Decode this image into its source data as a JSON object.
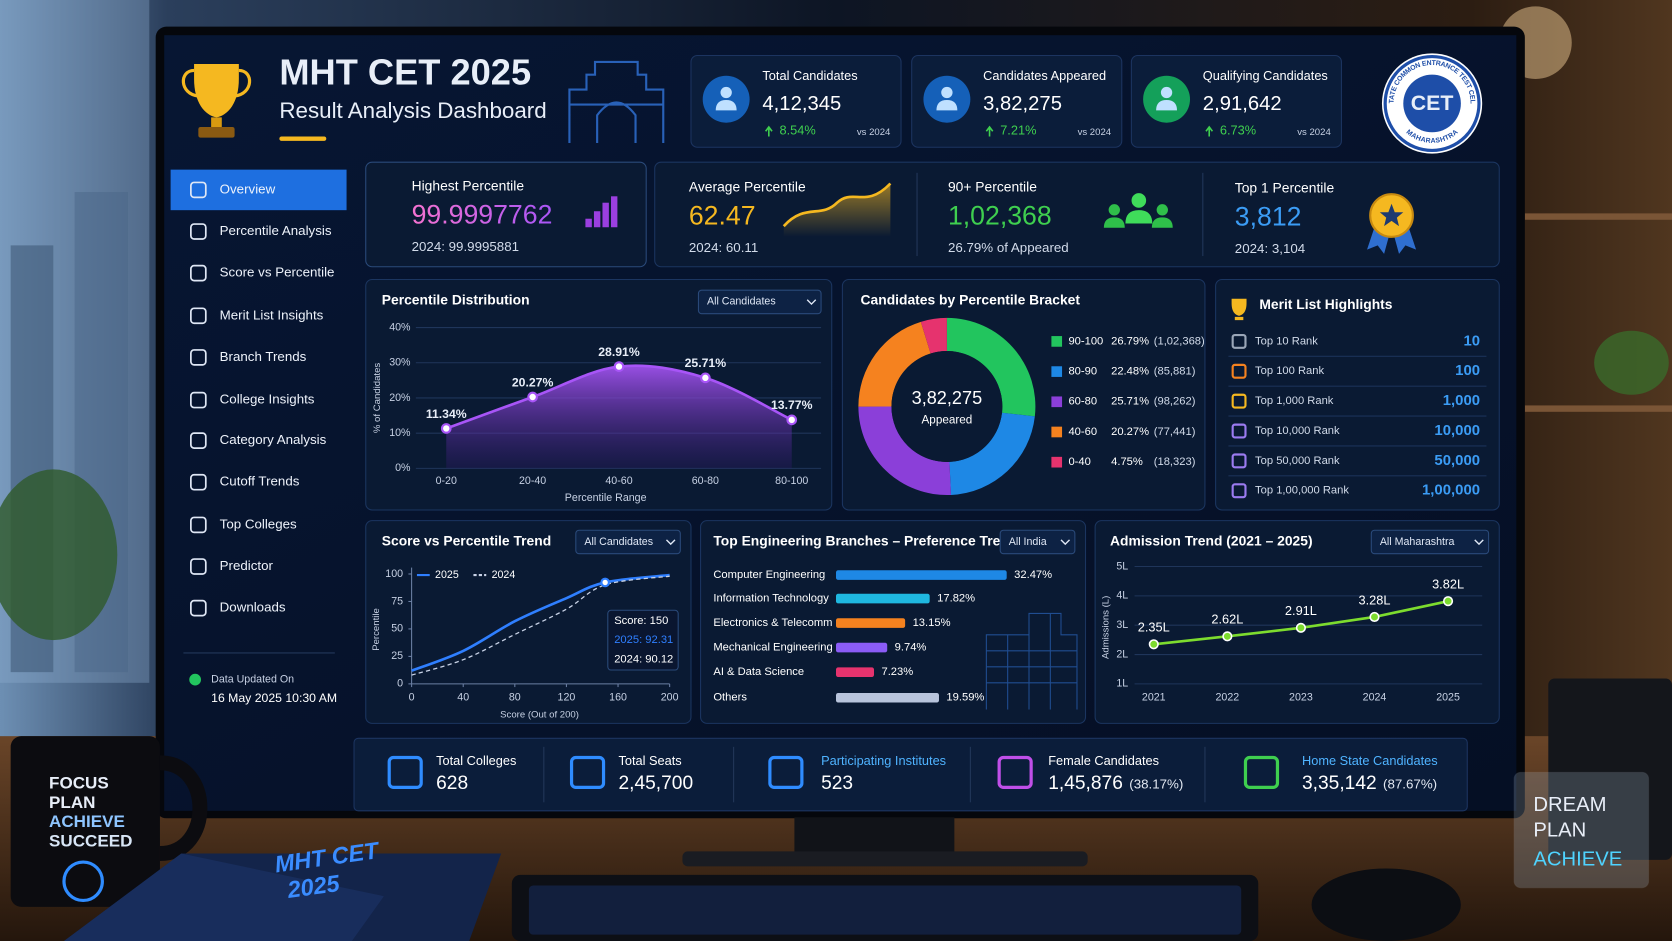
{
  "scene": {
    "mug": [
      "FOCUS",
      "PLAN",
      "ACHIEVE",
      "SUCCEED"
    ],
    "notebook": [
      "MHT CET",
      "2025"
    ],
    "sign": [
      "DREAM",
      "PLAN",
      "ACHIEVE"
    ]
  },
  "header": {
    "title": "MHT CET 2025",
    "subtitle": "Result Analysis Dashboard",
    "logo": "CET",
    "logo_top": "STATE COMMON ENTRANCE TEST CELL",
    "logo_bottom": "MAHARASHTRA"
  },
  "stats": [
    {
      "label": "Total Candidates",
      "value": "4,12,345",
      "change": "8.54%",
      "compare": "vs 2024"
    },
    {
      "label": "Candidates Appeared",
      "value": "3,82,275",
      "change": "7.21%",
      "compare": "vs 2024"
    },
    {
      "label": "Qualifying Candidates",
      "value": "2,91,642",
      "change": "6.73%",
      "compare": "vs 2024"
    }
  ],
  "nav": {
    "items": [
      "Overview",
      "Percentile Analysis",
      "Score vs Percentile",
      "Merit List Insights",
      "Branch Trends",
      "College Insights",
      "Category Analysis",
      "Cutoff Trends",
      "Top Colleges",
      "Predictor",
      "Downloads"
    ],
    "active": 0,
    "updated_label": "Data Updated On",
    "updated": "16 May 2025 10:30 AM"
  },
  "kpis": [
    {
      "label": "Highest Percentile",
      "value": "99.9997762",
      "sub": "2024: 99.9995881"
    },
    {
      "label": "Average Percentile",
      "value": "62.47",
      "sub": "2024: 60.11"
    },
    {
      "label": "90+ Percentile",
      "value": "1,02,368",
      "sub": "26.79% of Appeared"
    },
    {
      "label": "Top 1 Percentile",
      "value": "3,812",
      "sub": "2024: 3,104"
    }
  ],
  "merit": {
    "title": "Merit List Highlights",
    "rows": [
      {
        "label": "Top 10 Rank",
        "value": "10"
      },
      {
        "label": "Top 100 Rank",
        "value": "100"
      },
      {
        "label": "Top 1,000 Rank",
        "value": "1,000"
      },
      {
        "label": "Top 10,000 Rank",
        "value": "10,000"
      },
      {
        "label": "Top 50,000 Rank",
        "value": "50,000"
      },
      {
        "label": "Top 1,00,000 Rank",
        "value": "1,00,000"
      }
    ]
  },
  "summary": [
    {
      "label": "Total Colleges",
      "value": "628"
    },
    {
      "label": "Total Seats",
      "value": "2,45,700"
    },
    {
      "label": "Participating Institutes",
      "value": "523"
    },
    {
      "label": "Female Candidates",
      "value": "1,45,876",
      "share": "(38.17%)"
    },
    {
      "label": "Home State Candidates",
      "value": "3,35,142",
      "share": "(87.67%)"
    }
  ],
  "chart_data": [
    {
      "type": "area",
      "title": "Percentile Distribution",
      "filter": "All Candidates",
      "categories": [
        "0-20",
        "20-40",
        "40-60",
        "60-80",
        "80-100"
      ],
      "values": [
        11.34,
        20.27,
        28.91,
        25.71,
        13.77
      ],
      "value_labels": [
        "11.34%",
        "20.27%",
        "28.91%",
        "25.71%",
        "13.77%"
      ],
      "ylim": [
        0,
        40
      ],
      "yticks": [
        {
          "value": 0,
          "label": "0%"
        },
        {
          "value": 10,
          "label": "10%"
        },
        {
          "value": 20,
          "label": "20%"
        },
        {
          "value": 30,
          "label": "30%"
        },
        {
          "value": 40,
          "label": "40%"
        }
      ],
      "y_label": "% of Candidates",
      "x_label": "Percentile Range",
      "color": "#a855f7",
      "grid": true
    },
    {
      "type": "donut",
      "title": "Candidates by Percentile Bracket",
      "center_value": "3,82,275",
      "center_label": "Appeared",
      "categories": [
        "90-100",
        "80-90",
        "60-80",
        "40-60",
        "0-40"
      ],
      "values": [
        26.79,
        22.48,
        25.71,
        20.27,
        4.75
      ],
      "value_labels": [
        "26.79%",
        "22.48%",
        "25.71%",
        "20.27%",
        "4.75%"
      ],
      "count_labels": [
        "(1,02,368)",
        "(85,881)",
        "(98,262)",
        "(77,441)",
        "(18,323)"
      ],
      "colors": [
        "#22c55e",
        "#1e88e5",
        "#8b3fd9",
        "#f5821f",
        "#e6336e"
      ]
    },
    {
      "type": "line",
      "title": "Score vs Percentile Trend",
      "filter": "All Candidates",
      "x": [
        0,
        40,
        80,
        120,
        150,
        200
      ],
      "series": [
        {
          "name": "2025",
          "color": "#2f7fff",
          "dashed": false,
          "values": [
            12,
            30,
            57,
            78,
            92.31,
            99
          ]
        },
        {
          "name": "2024",
          "color": "#c8d2e6",
          "dashed": true,
          "values": [
            8,
            22,
            45,
            68,
            90.12,
            98
          ]
        }
      ],
      "xlim": [
        0,
        200
      ],
      "xticks": [
        0,
        40,
        80,
        120,
        160,
        200
      ],
      "ylim": [
        0,
        100
      ],
      "yticks": [
        0,
        25,
        50,
        75,
        100
      ],
      "x_label": "Score (Out of 200)",
      "y_label": "Percentile",
      "highlight": 4,
      "tooltip": [
        "Score: 150",
        "2025: 92.31",
        "2024: 90.12"
      ]
    },
    {
      "type": "hbar",
      "title": "Top Engineering Branches – Preference Trend",
      "filter": "All India",
      "categories": [
        "Computer Engineering",
        "Information Technology",
        "Electronics & Telecomm",
        "Mechanical Engineering",
        "AI & Data Science",
        "Others"
      ],
      "values": [
        32.47,
        17.82,
        13.15,
        9.74,
        7.23,
        19.59
      ],
      "value_labels": [
        "32.47%",
        "17.82%",
        "13.15%",
        "9.74%",
        "7.23%",
        "19.59%"
      ],
      "colors": [
        "#1e88e5",
        "#1fb8e0",
        "#f5821f",
        "#8b5cf6",
        "#e6336e",
        "#b8c4dc"
      ]
    },
    {
      "type": "line",
      "title": "Admission Trend (2021 – 2025)",
      "filter": "All Maharashtra",
      "categories": [
        "2021",
        "2022",
        "2023",
        "2024",
        "2025"
      ],
      "values": [
        2.35,
        2.62,
        2.91,
        3.28,
        3.82
      ],
      "value_labels": [
        "2.35L",
        "2.62L",
        "2.91L",
        "3.28L",
        "3.82L"
      ],
      "ylim": [
        1,
        5
      ],
      "yticks": [
        {
          "value": 1,
          "label": "1L"
        },
        {
          "value": 2,
          "label": "2L"
        },
        {
          "value": 3,
          "label": "3L"
        },
        {
          "value": 4,
          "label": "4L"
        },
        {
          "value": 5,
          "label": "5L"
        }
      ],
      "y_label": "Admissions (L)",
      "color": "#7ddc2e",
      "grid": true
    }
  ]
}
